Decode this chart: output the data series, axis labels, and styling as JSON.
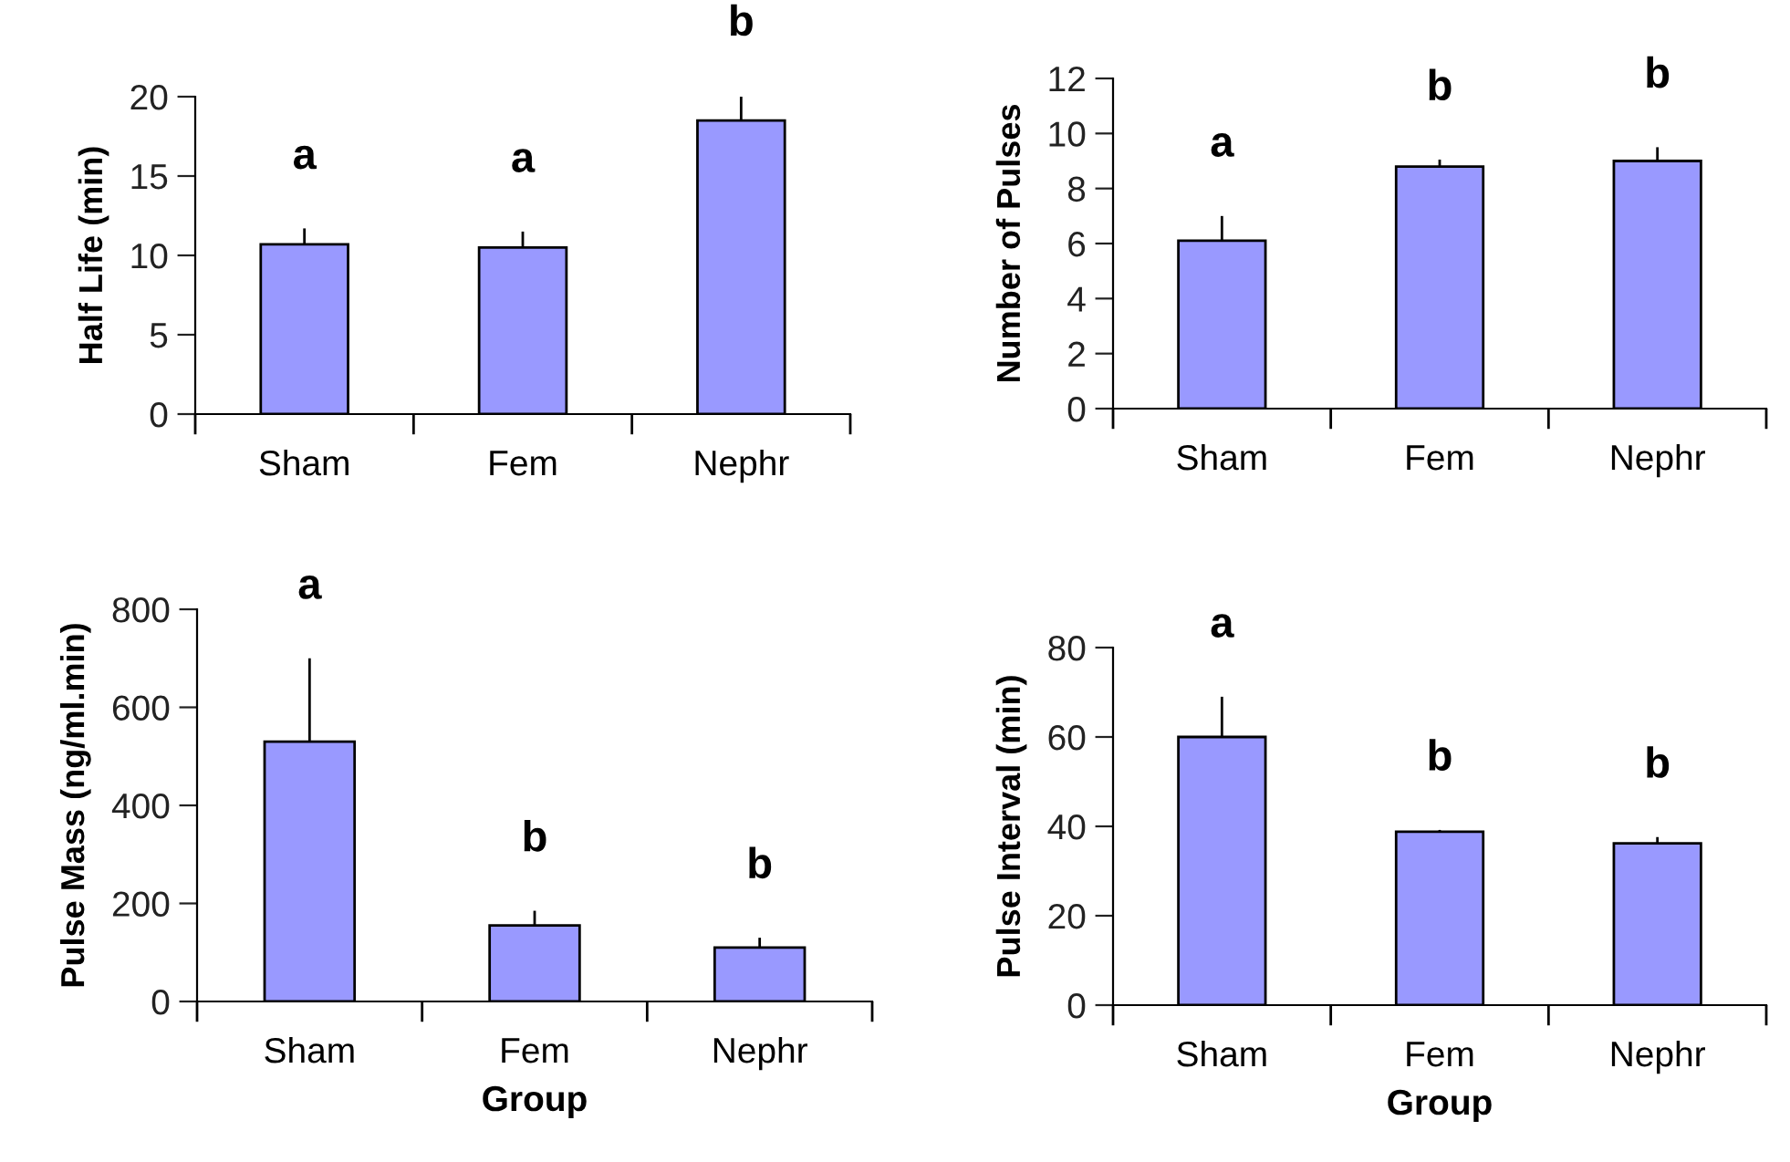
{
  "chart_data": [
    {
      "type": "bar",
      "ylabel": "Half Life (min)",
      "categories": [
        "Sham",
        "Fem",
        "Nephr"
      ],
      "values": [
        10.7,
        10.5,
        18.5
      ],
      "errors": [
        [
          10.7,
          11.7
        ],
        [
          10.5,
          11.5
        ],
        [
          18.5,
          20.1
        ]
      ],
      "color": "#9999ff",
      "ylim": [
        0,
        20
      ],
      "yticks": [
        0,
        5,
        10,
        15,
        20
      ],
      "grid": false,
      "annotations": [
        "a",
        "a",
        "b"
      ]
    },
    {
      "type": "bar",
      "ylabel": "Number of Pulses",
      "categories": [
        "Sham",
        "Fem",
        "Nephr"
      ],
      "values": [
        6.1,
        8.8,
        9.0
      ],
      "errors": [
        [
          6.1,
          7.0
        ],
        [
          8.8,
          9.05
        ],
        [
          9.0,
          9.5
        ]
      ],
      "color": "#9999ff",
      "ylim": [
        0,
        12
      ],
      "yticks": [
        0,
        2,
        4,
        6,
        8,
        10,
        12
      ],
      "grid": false,
      "annotations": [
        "a",
        "b",
        "b"
      ]
    },
    {
      "type": "bar",
      "ylabel": "Pulse Mass (ng/ml.min)",
      "xlabel": "Group",
      "categories": [
        "Sham",
        "Fem",
        "Nephr"
      ],
      "values": [
        530,
        155,
        110
      ],
      "errors": [
        [
          530,
          700
        ],
        [
          155,
          185
        ],
        [
          110,
          130
        ]
      ],
      "color": "#9999ff",
      "ylim": [
        0,
        800
      ],
      "yticks": [
        0,
        200,
        400,
        600,
        800
      ],
      "grid": false,
      "annotations": [
        "a",
        "b",
        "b"
      ]
    },
    {
      "type": "bar",
      "ylabel": "Pulse Interval (min)",
      "xlabel": "Group",
      "categories": [
        "Sham",
        "Fem",
        "Nephr"
      ],
      "values": [
        60,
        38.8,
        36.2
      ],
      "errors": [
        [
          60,
          69
        ],
        [
          38.8,
          39.2
        ],
        [
          36.2,
          37.6
        ]
      ],
      "color": "#9999ff",
      "ylim": [
        0,
        80
      ],
      "yticks": [
        0,
        20,
        40,
        60,
        80
      ],
      "grid": false,
      "annotations": [
        "a",
        "b",
        "b"
      ]
    }
  ]
}
